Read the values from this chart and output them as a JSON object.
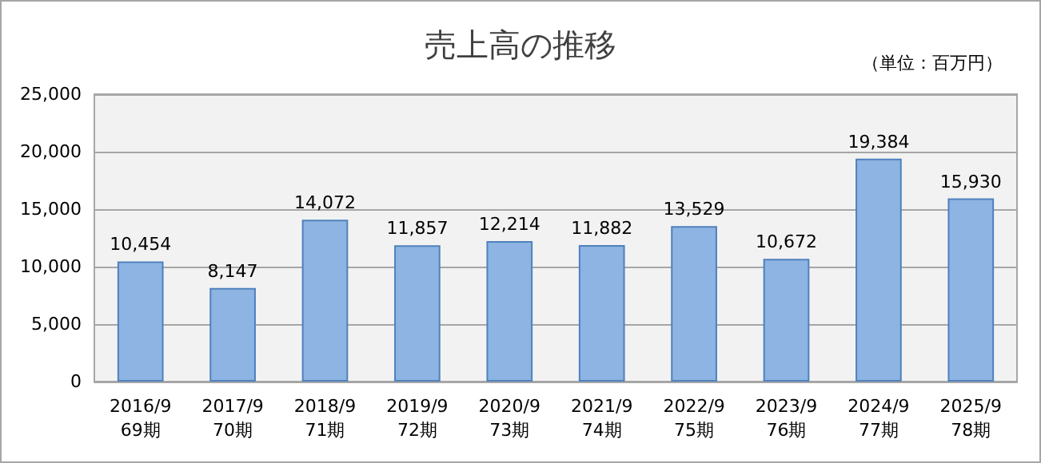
{
  "chart_data": {
    "type": "bar",
    "title": "売上高の推移",
    "annotations": [
      "（単位：百万円）"
    ],
    "categories": [
      "2016/9\n69期",
      "2017/9\n70期",
      "2018/9\n71期",
      "2019/9\n72期",
      "2020/9\n73期",
      "2021/9\n74期",
      "2022/9\n75期",
      "2023/9\n76期",
      "2024/9\n77期",
      "2025/9\n78期"
    ],
    "values": [
      10454,
      8147,
      14072,
      11857,
      12214,
      11882,
      13529,
      10672,
      19384,
      15930
    ],
    "value_labels": [
      "10,454",
      "8,147",
      "14,072",
      "11,857",
      "12,214",
      "11,882",
      "13,529",
      "10,672",
      "19,384",
      "15,930"
    ],
    "color": "#8db4e2",
    "ylim": [
      0,
      25000
    ],
    "yticks": [
      {
        "value": 0,
        "label": "0"
      },
      {
        "value": 5000,
        "label": "5,000"
      },
      {
        "value": 10000,
        "label": "10,000"
      },
      {
        "value": 15000,
        "label": "15,000"
      },
      {
        "value": 20000,
        "label": "20,000"
      },
      {
        "value": 25000,
        "label": "25,000"
      }
    ],
    "grid": "y"
  }
}
